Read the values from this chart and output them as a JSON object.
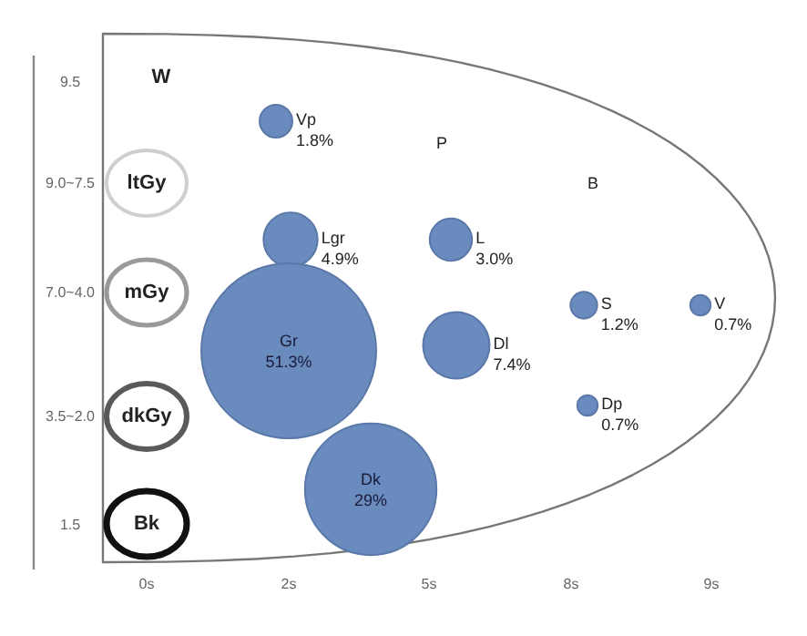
{
  "chart_data": {
    "type": "other",
    "categories": [
      "Vp",
      "Lgr",
      "Gr",
      "Dk",
      "L",
      "Dl",
      "S",
      "V",
      "Dp"
    ],
    "values": [
      1.8,
      4.9,
      51.3,
      29,
      3.0,
      7.4,
      1.2,
      0.7,
      0.7
    ],
    "value_labels": [
      "1.8%",
      "4.9%",
      "51.3%",
      "29%",
      "3.0%",
      "7.4%",
      "1.2%",
      "0.7%",
      "0.7%"
    ],
    "color": "#6a8bbd",
    "annotations": [
      "W",
      "ltGy",
      "mGy",
      "dkGy",
      "Bk",
      "P",
      "B",
      "9.5",
      "9.0~7.5",
      "7.0~4.0",
      "3.5~2.0",
      "1.5",
      "0s",
      "2s",
      "5s",
      "8s",
      "9s"
    ]
  }
}
